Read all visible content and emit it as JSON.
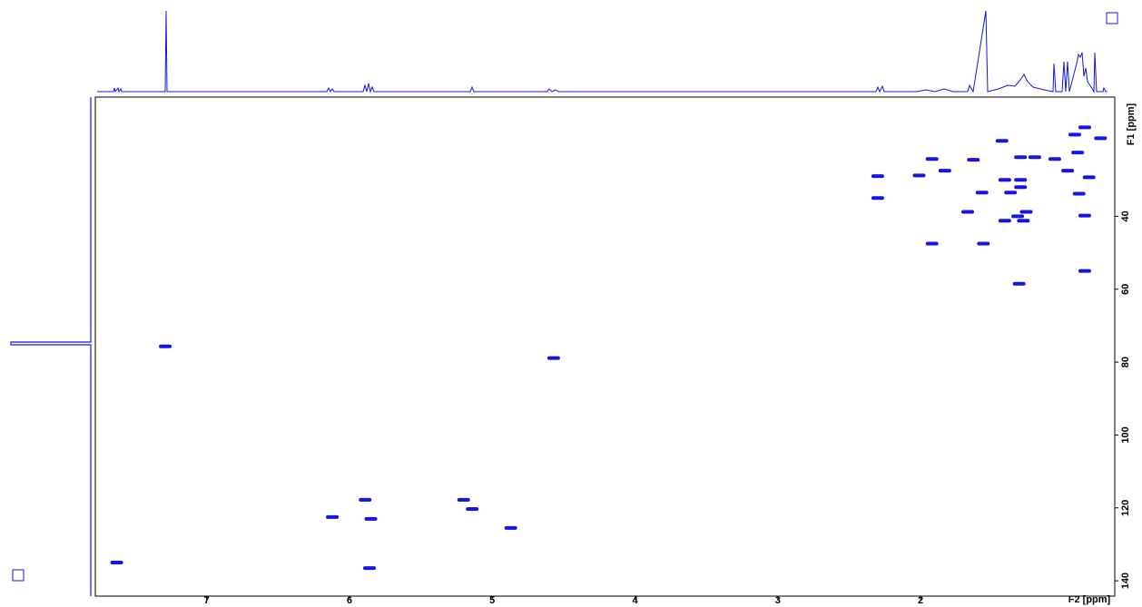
{
  "chart_data": {
    "type": "scatter",
    "x_label": "F2 [ppm]",
    "y_label": "F1 [ppm]",
    "xlim": [
      7.78,
      0.64
    ],
    "xticks": [
      7,
      6,
      5,
      4,
      3,
      2
    ],
    "ylim": [
      144.2,
      7.3
    ],
    "yticks": [
      40,
      60,
      80,
      100,
      120,
      140
    ],
    "color": "#1414e6",
    "x": [
      0.85,
      0.92,
      0.74,
      1.43,
      0.9,
      1.06,
      1.2,
      1.3,
      1.63,
      1.92,
      1.83,
      2.01,
      2.3,
      0.97,
      0.82,
      1.3,
      1.41,
      1.3,
      1.37,
      1.57,
      0.89,
      2.3,
      1.67,
      1.26,
      1.32,
      0.85,
      1.41,
      1.28,
      1.92,
      1.56,
      0.85,
      1.31,
      7.29,
      4.57,
      5.89,
      6.12,
      5.2,
      5.14,
      5.85,
      4.87,
      7.63,
      5.86
    ],
    "values": [
      15.6,
      17.6,
      18.6,
      19.3,
      22.5,
      24.3,
      23.8,
      23.8,
      24.5,
      24.3,
      27.5,
      28.8,
      29.0,
      27.5,
      29.3,
      30.0,
      30.0,
      32.0,
      33.5,
      33.5,
      33.8,
      35.0,
      38.8,
      38.8,
      40.0,
      39.8,
      41.2,
      41.2,
      47.5,
      47.5,
      55.0,
      58.5,
      75.7,
      78.9,
      117.8,
      122.5,
      117.8,
      120.3,
      123.0,
      125.5,
      135.0,
      136.5
    ]
  }
}
